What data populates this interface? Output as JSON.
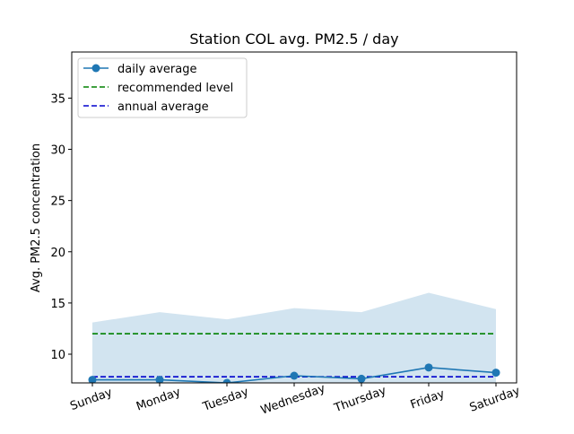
{
  "chart_data": {
    "type": "line",
    "title": "Station COL avg. PM2.5 / day",
    "xlabel": "",
    "ylabel": "Avg. PM2.5 concentration",
    "categories": [
      "Sunday",
      "Monday",
      "Tuesday",
      "Wednesday",
      "Thursday",
      "Friday",
      "Saturday"
    ],
    "ylim": [
      7.2,
      39.5
    ],
    "yticks": [
      10,
      15,
      20,
      25,
      30,
      35
    ],
    "series": [
      {
        "name": "daily average",
        "values": [
          7.5,
          7.5,
          7.2,
          7.9,
          7.6,
          8.7,
          8.2
        ],
        "color": "#1f77b4",
        "style": "line-marker"
      }
    ],
    "band": {
      "lower": [
        7.2,
        7.2,
        7.2,
        7.2,
        7.2,
        7.2,
        7.2
      ],
      "upper": [
        13.1,
        14.1,
        13.4,
        14.5,
        14.1,
        16.0,
        14.4
      ],
      "color": "#1f77b4",
      "opacity": 0.2
    },
    "reference_lines": [
      {
        "name": "recommended level",
        "value": 12.0,
        "color": "#008000",
        "style": "dashed"
      },
      {
        "name": "annual average",
        "value": 7.8,
        "color": "#0000cd",
        "style": "dashed"
      }
    ],
    "legend_position": "top-left",
    "grid": false
  }
}
